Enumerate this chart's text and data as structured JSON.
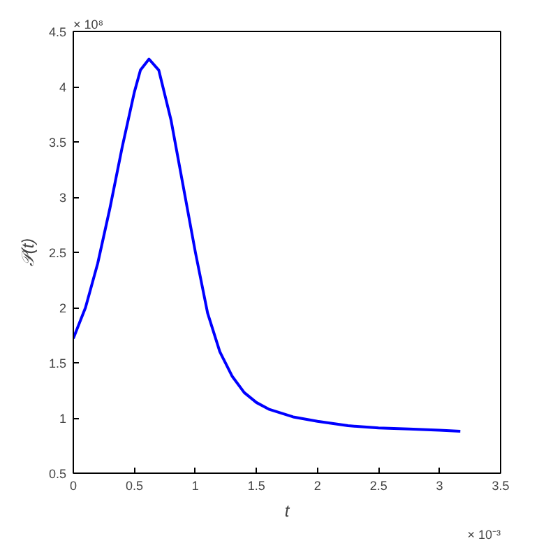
{
  "chart_data": {
    "type": "line",
    "xlabel": "t",
    "ylabel": "𝒫(t)",
    "annotations": [
      "× 10⁸",
      "× 10⁻³"
    ],
    "x": [
      0,
      0.1,
      0.2,
      0.3,
      0.4,
      0.5,
      0.55,
      0.62,
      0.7,
      0.8,
      0.9,
      1.0,
      1.1,
      1.2,
      1.3,
      1.4,
      1.5,
      1.6,
      1.8,
      2.0,
      2.25,
      2.5,
      2.75,
      3.0,
      3.17
    ],
    "series": [
      {
        "color": "#0000ff",
        "values": [
          1.72,
          2.0,
          2.4,
          2.9,
          3.45,
          3.95,
          4.15,
          4.25,
          4.15,
          3.7,
          3.1,
          2.5,
          1.95,
          1.6,
          1.38,
          1.23,
          1.14,
          1.08,
          1.01,
          0.97,
          0.93,
          0.91,
          0.9,
          0.89,
          0.88
        ]
      }
    ],
    "xlim": [
      0,
      3.5
    ],
    "ylim": [
      0.5,
      4.5
    ],
    "xticks": [
      0,
      0.5,
      1,
      1.5,
      2,
      2.5,
      3,
      3.5
    ],
    "yticks": [
      0.5,
      1,
      1.5,
      2,
      2.5,
      3,
      3.5,
      4,
      4.5
    ],
    "grid": false,
    "marker": "none",
    "line_style": "solid"
  }
}
